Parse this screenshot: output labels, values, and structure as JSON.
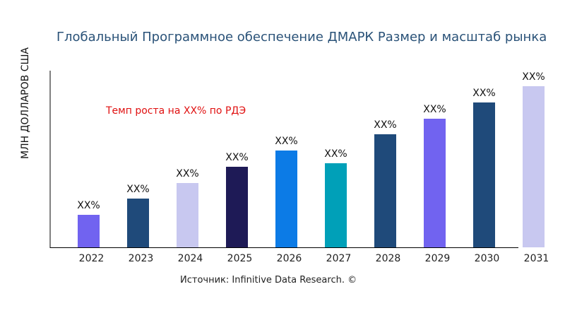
{
  "chart_data": {
    "type": "bar",
    "title": "Глобальный Программное обеспечение ДМАРК Размер и масштаб рынка",
    "ylabel": "МЛН ДОЛЛАРОВ США",
    "xlabel": "",
    "annotation": "Темп роста на XX% по РДЭ",
    "source": "Источник: Infinitive Data Research. ©",
    "categories": [
      "2022",
      "2023",
      "2024",
      "2025",
      "2026",
      "2027",
      "2028",
      "2029",
      "2030",
      "2031"
    ],
    "values": [
      46,
      69,
      91,
      114,
      137,
      119,
      160,
      182,
      205,
      228
    ],
    "data_labels": [
      "XX%",
      "XX%",
      "XX%",
      "XX%",
      "XX%",
      "XX%",
      "XX%",
      "XX%",
      "XX%",
      "XX%"
    ],
    "colors": [
      "#7163f0",
      "#1f4a7a",
      "#c8c8f0",
      "#1e1a56",
      "#0c7be6",
      "#00a0b8",
      "#1f4a7a",
      "#7163f0",
      "#1f4a7a",
      "#c8c8f0"
    ],
    "ylim": [
      0,
      250
    ],
    "grid": false,
    "y_ticks_shown": false
  }
}
